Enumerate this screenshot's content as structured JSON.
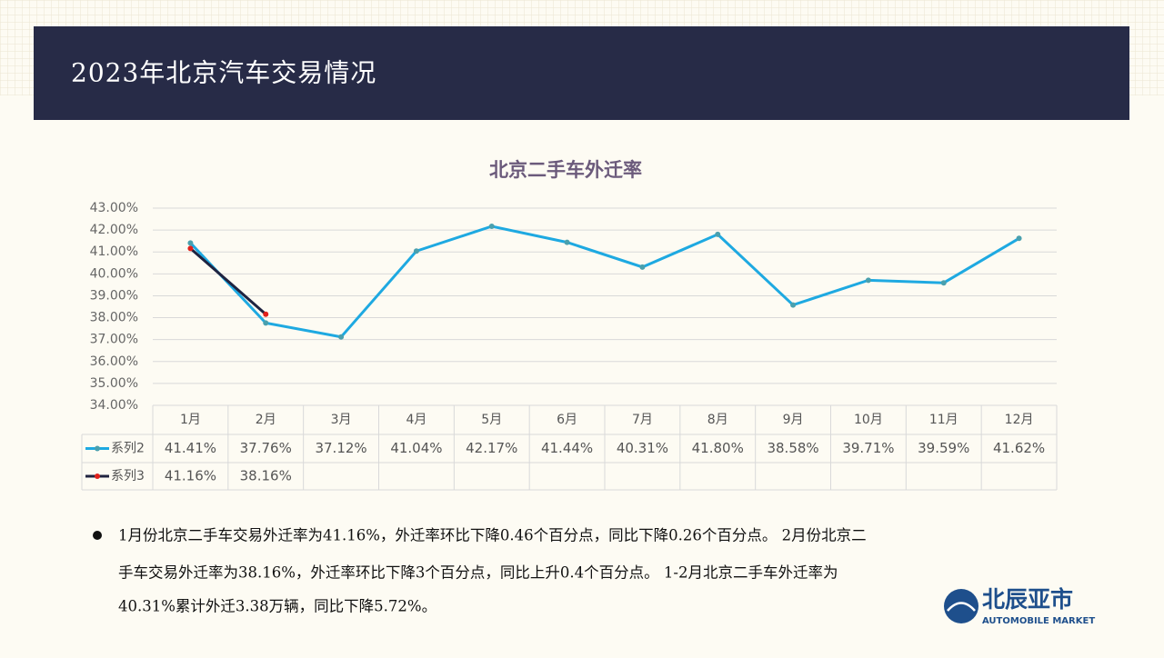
{
  "header": {
    "title": "2023年北京汽车交易情况"
  },
  "chart_data": {
    "type": "line",
    "title": "北京二手车外迁率",
    "categories": [
      "1月",
      "2月",
      "3月",
      "4月",
      "5月",
      "6月",
      "7月",
      "8月",
      "9月",
      "10月",
      "11月",
      "12月"
    ],
    "series": [
      {
        "name": "系列2",
        "color": "#1ea9e1",
        "marker_color": "#4aa0ae",
        "values": [
          41.41,
          37.76,
          37.12,
          41.04,
          42.17,
          41.44,
          40.31,
          41.8,
          38.58,
          39.71,
          39.59,
          41.62
        ],
        "value_labels": [
          "41.41%",
          "37.76%",
          "37.12%",
          "41.04%",
          "42.17%",
          "41.44%",
          "40.31%",
          "41.80%",
          "38.58%",
          "39.71%",
          "39.59%",
          "41.62%"
        ]
      },
      {
        "name": "系列3",
        "color": "#1f2340",
        "marker_color": "#e0211c",
        "values": [
          41.16,
          38.16,
          null,
          null,
          null,
          null,
          null,
          null,
          null,
          null,
          null,
          null
        ],
        "value_labels": [
          "41.16%",
          "38.16%",
          null,
          null,
          null,
          null,
          null,
          null,
          null,
          null,
          null,
          null
        ]
      }
    ],
    "ylim": [
      34,
      43
    ],
    "yticks": [
      {
        "value": 34,
        "label": "34.00%"
      },
      {
        "value": 35,
        "label": "35.00%"
      },
      {
        "value": 36,
        "label": "36.00%"
      },
      {
        "value": 37,
        "label": "37.00%"
      },
      {
        "value": 38,
        "label": "38.00%"
      },
      {
        "value": 39,
        "label": "39.00%"
      },
      {
        "value": 40,
        "label": "40.00%"
      },
      {
        "value": 41,
        "label": "41.00%"
      },
      {
        "value": 42,
        "label": "42.00%"
      },
      {
        "value": 43,
        "label": "43.00%"
      }
    ],
    "grid": true,
    "data_table": true
  },
  "notes": {
    "lines": [
      "1月份北京二手车交易外迁率为41.16%，外迁率环比下降0.46个百分点，同比下降0.26个百分点。 2月份北京二",
      "手车交易外迁率为38.16%，外迁率环比下降3个百分点，同比上升0.4个百分点。 1-2月北京二手车外迁率为",
      "40.31%累计外迁3.38万辆，同比下降5.72%。"
    ]
  },
  "logo": {
    "name": "北辰亚市",
    "subtitle": "AUTOMOBILE MARKET"
  }
}
